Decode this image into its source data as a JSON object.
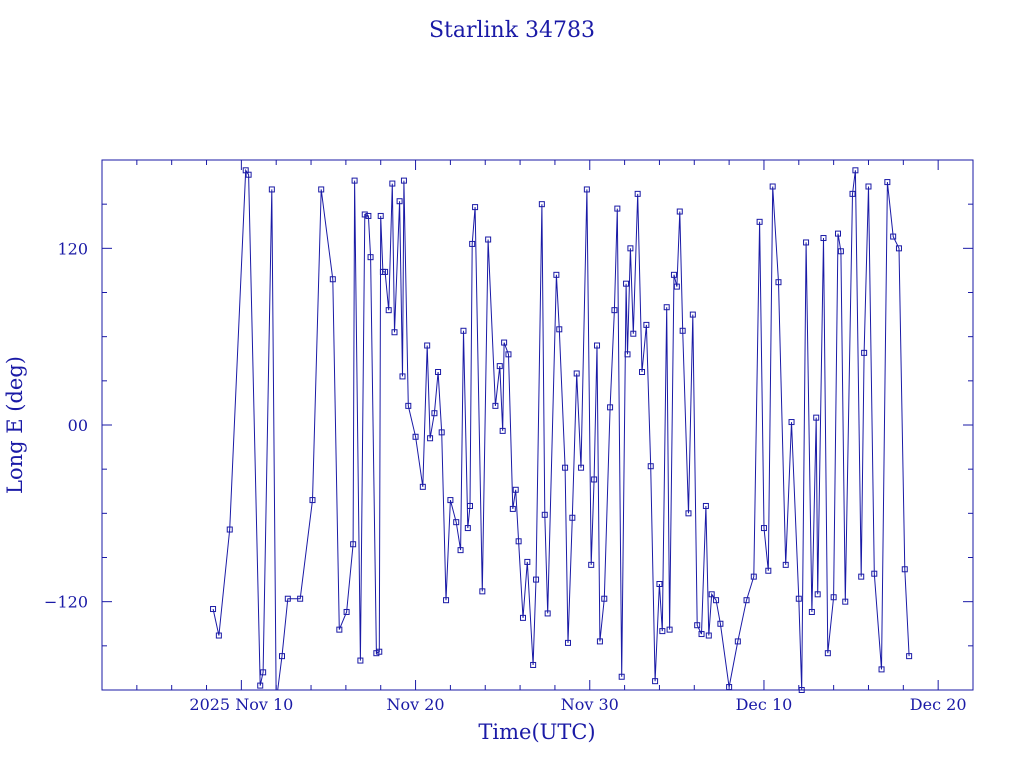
{
  "colors": {
    "ink": "#1a1aa6",
    "background": "#ffffff"
  },
  "chart_data": {
    "type": "line",
    "title": "Starlink 34783",
    "xlabel": "Time(UTC)",
    "ylabel": "Long E (deg)",
    "x_unit": "date",
    "xlim": [
      "2025-11-02 00:00",
      "2025-12-22 00:00"
    ],
    "ylim": [
      -180,
      180
    ],
    "x_ticks": [
      {
        "value": "2025-11-10",
        "label": "2025 Nov 10"
      },
      {
        "value": "2025-11-20",
        "label": "Nov 20"
      },
      {
        "value": "2025-11-30",
        "label": "Nov 30"
      },
      {
        "value": "2025-12-10",
        "label": "Dec 10"
      },
      {
        "value": "2025-12-20",
        "label": "Dec 20"
      }
    ],
    "y_ticks": [
      {
        "value": -120,
        "label": "−120"
      },
      {
        "value": 0,
        "label": "00"
      },
      {
        "value": 120,
        "label": "120"
      }
    ],
    "grid": false,
    "legend": "none",
    "marker": "square",
    "series": [
      {
        "points": [
          [
            "2025-11-08 09:00",
            -125
          ],
          [
            "2025-11-08 17:00",
            -143
          ],
          [
            "2025-11-09 08:00",
            -71
          ],
          [
            "2025-11-10 06:00",
            173
          ],
          [
            "2025-11-10 10:00",
            170
          ],
          [
            "2025-11-11 02:00",
            -177
          ],
          [
            "2025-11-11 06:00",
            -168
          ],
          [
            "2025-11-11 18:00",
            160
          ],
          [
            "2025-11-12 00:00",
            -188
          ],
          [
            "2025-11-12 08:00",
            -157
          ],
          [
            "2025-11-12 16:00",
            -118
          ],
          [
            "2025-11-13 09:00",
            -118
          ],
          [
            "2025-11-14 02:00",
            -51
          ],
          [
            "2025-11-14 14:00",
            160
          ],
          [
            "2025-11-15 06:00",
            99
          ],
          [
            "2025-11-15 15:00",
            -139
          ],
          [
            "2025-11-16 01:00",
            -127
          ],
          [
            "2025-11-16 10:00",
            -81
          ],
          [
            "2025-11-16 12:00",
            166
          ],
          [
            "2025-11-16 20:00",
            -160
          ],
          [
            "2025-11-17 02:00",
            143
          ],
          [
            "2025-11-17 07:00",
            142
          ],
          [
            "2025-11-17 10:00",
            114
          ],
          [
            "2025-11-17 18:00",
            -155
          ],
          [
            "2025-11-17 22:00",
            -154
          ],
          [
            "2025-11-18 00:00",
            142
          ],
          [
            "2025-11-18 03:00",
            104
          ],
          [
            "2025-11-18 06:00",
            104
          ],
          [
            "2025-11-18 11:00",
            78
          ],
          [
            "2025-11-18 16:00",
            164
          ],
          [
            "2025-11-18 19:00",
            63
          ],
          [
            "2025-11-19 02:00",
            152
          ],
          [
            "2025-11-19 06:00",
            33
          ],
          [
            "2025-11-19 08:00",
            166
          ],
          [
            "2025-11-19 14:00",
            13
          ],
          [
            "2025-11-20 00:00",
            -8
          ],
          [
            "2025-11-20 10:00",
            -42
          ],
          [
            "2025-11-20 16:00",
            54
          ],
          [
            "2025-11-20 20:00",
            -9
          ],
          [
            "2025-11-21 02:00",
            8
          ],
          [
            "2025-11-21 07:00",
            36
          ],
          [
            "2025-11-21 12:00",
            -5
          ],
          [
            "2025-11-21 18:00",
            -119
          ],
          [
            "2025-11-22 00:00",
            -51
          ],
          [
            "2025-11-22 08:00",
            -66
          ],
          [
            "2025-11-22 14:00",
            -85
          ],
          [
            "2025-11-22 18:00",
            64
          ],
          [
            "2025-11-23 00:00",
            -70
          ],
          [
            "2025-11-23 03:00",
            -55
          ],
          [
            "2025-11-23 06:00",
            123
          ],
          [
            "2025-11-23 10:00",
            148
          ],
          [
            "2025-11-23 20:00",
            -113
          ],
          [
            "2025-11-24 04:00",
            126
          ],
          [
            "2025-11-24 14:00",
            13
          ],
          [
            "2025-11-24 20:00",
            40
          ],
          [
            "2025-11-25 00:00",
            -4
          ],
          [
            "2025-11-25 02:00",
            56
          ],
          [
            "2025-11-25 08:00",
            48
          ],
          [
            "2025-11-25 14:00",
            -57
          ],
          [
            "2025-11-25 18:00",
            -44
          ],
          [
            "2025-11-25 22:00",
            -79
          ],
          [
            "2025-11-26 04:00",
            -131
          ],
          [
            "2025-11-26 10:00",
            -93
          ],
          [
            "2025-11-26 18:00",
            -163
          ],
          [
            "2025-11-26 22:00",
            -105
          ],
          [
            "2025-11-27 06:00",
            150
          ],
          [
            "2025-11-27 10:00",
            -61
          ],
          [
            "2025-11-27 14:00",
            -128
          ],
          [
            "2025-11-28 02:00",
            102
          ],
          [
            "2025-11-28 06:00",
            65
          ],
          [
            "2025-11-28 14:00",
            -29
          ],
          [
            "2025-11-28 18:00",
            -148
          ],
          [
            "2025-11-29 00:00",
            -63
          ],
          [
            "2025-11-29 06:00",
            35
          ],
          [
            "2025-11-29 12:00",
            -29
          ],
          [
            "2025-11-29 20:00",
            160
          ],
          [
            "2025-11-30 02:00",
            -95
          ],
          [
            "2025-11-30 06:00",
            -37
          ],
          [
            "2025-11-30 10:00",
            54
          ],
          [
            "2025-11-30 14:00",
            -147
          ],
          [
            "2025-11-30 20:00",
            -118
          ],
          [
            "2025-12-01 04:00",
            12
          ],
          [
            "2025-12-01 10:00",
            78
          ],
          [
            "2025-12-01 14:00",
            147
          ],
          [
            "2025-12-01 20:00",
            -171
          ],
          [
            "2025-12-02 02:00",
            96
          ],
          [
            "2025-12-02 04:00",
            48
          ],
          [
            "2025-12-02 08:00",
            120
          ],
          [
            "2025-12-02 12:00",
            62
          ],
          [
            "2025-12-02 18:00",
            157
          ],
          [
            "2025-12-03 00:00",
            36
          ],
          [
            "2025-12-03 06:00",
            68
          ],
          [
            "2025-12-03 12:00",
            -28
          ],
          [
            "2025-12-03 18:00",
            -174
          ],
          [
            "2025-12-04 00:00",
            -108
          ],
          [
            "2025-12-04 04:00",
            -140
          ],
          [
            "2025-12-04 10:00",
            80
          ],
          [
            "2025-12-04 14:00",
            -139
          ],
          [
            "2025-12-04 20:00",
            102
          ],
          [
            "2025-12-05 00:00",
            94
          ],
          [
            "2025-12-05 04:00",
            145
          ],
          [
            "2025-12-05 08:00",
            64
          ],
          [
            "2025-12-05 16:00",
            -60
          ],
          [
            "2025-12-05 22:00",
            75
          ],
          [
            "2025-12-06 04:00",
            -136
          ],
          [
            "2025-12-06 10:00",
            -142
          ],
          [
            "2025-12-06 16:00",
            -55
          ],
          [
            "2025-12-06 20:00",
            -143
          ],
          [
            "2025-12-07 00:00",
            -115
          ],
          [
            "2025-12-07 06:00",
            -119
          ],
          [
            "2025-12-07 12:00",
            -135
          ],
          [
            "2025-12-08 00:00",
            -178
          ],
          [
            "2025-12-08 12:00",
            -147
          ],
          [
            "2025-12-09 00:00",
            -119
          ],
          [
            "2025-12-09 10:00",
            -103
          ],
          [
            "2025-12-09 18:00",
            138
          ],
          [
            "2025-12-10 00:00",
            -70
          ],
          [
            "2025-12-10 06:00",
            -99
          ],
          [
            "2025-12-10 12:00",
            162
          ],
          [
            "2025-12-10 20:00",
            97
          ],
          [
            "2025-12-11 06:00",
            -95
          ],
          [
            "2025-12-11 14:00",
            2
          ],
          [
            "2025-12-12 00:00",
            -118
          ],
          [
            "2025-12-12 04:00",
            -180
          ],
          [
            "2025-12-12 10:00",
            124
          ],
          [
            "2025-12-12 18:00",
            -127
          ],
          [
            "2025-12-13 00:00",
            5
          ],
          [
            "2025-12-13 02:00",
            -115
          ],
          [
            "2025-12-13 10:00",
            127
          ],
          [
            "2025-12-13 16:00",
            -155
          ],
          [
            "2025-12-14 00:00",
            -117
          ],
          [
            "2025-12-14 06:00",
            130
          ],
          [
            "2025-12-14 10:00",
            118
          ],
          [
            "2025-12-14 16:00",
            -120
          ],
          [
            "2025-12-15 02:00",
            157
          ],
          [
            "2025-12-15 06:00",
            173
          ],
          [
            "2025-12-15 14:00",
            -103
          ],
          [
            "2025-12-15 18:00",
            49
          ],
          [
            "2025-12-16 00:00",
            162
          ],
          [
            "2025-12-16 08:00",
            -101
          ],
          [
            "2025-12-16 18:00",
            -166
          ],
          [
            "2025-12-17 02:00",
            165
          ],
          [
            "2025-12-17 10:00",
            128
          ],
          [
            "2025-12-17 18:00",
            120
          ],
          [
            "2025-12-18 02:00",
            -98
          ],
          [
            "2025-12-18 08:00",
            -157
          ]
        ]
      }
    ]
  }
}
